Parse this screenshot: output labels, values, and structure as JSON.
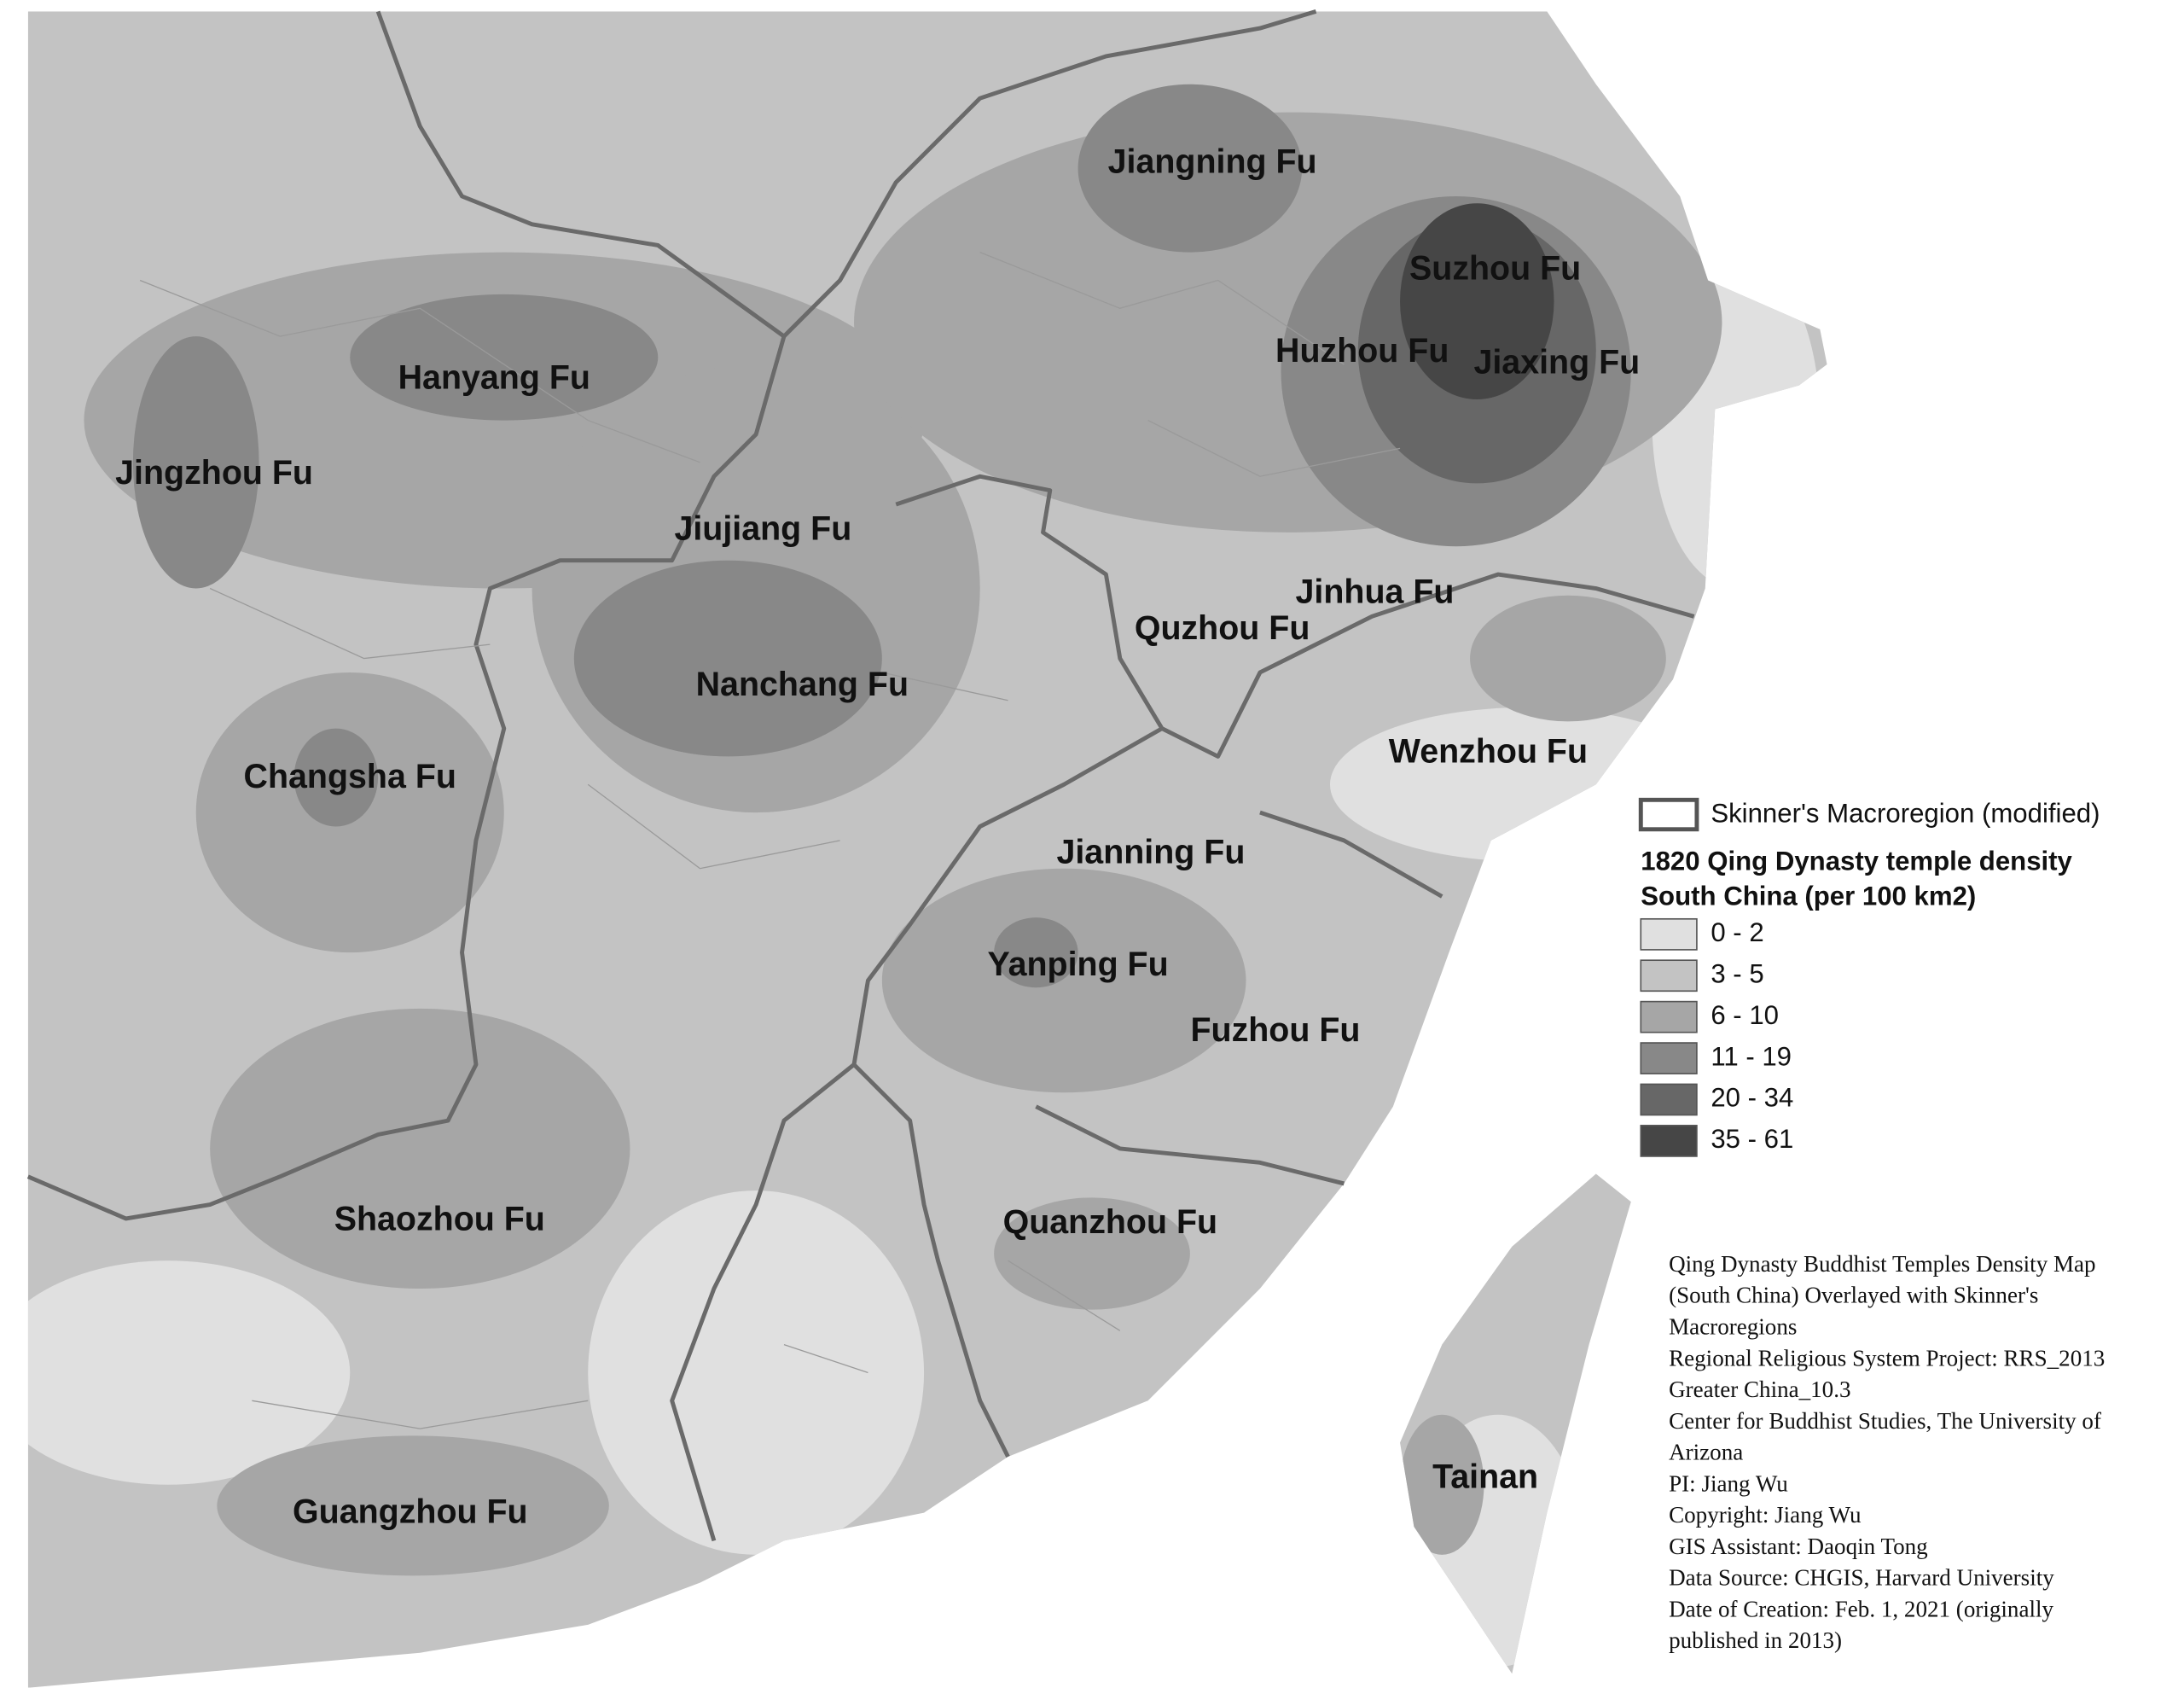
{
  "labels": [
    "Jiangning Fu",
    "Suzhou Fu",
    "Huzhou Fu",
    "Jiaxing Fu",
    "Hanyang Fu",
    "Jingzhou Fu",
    "Jiujiang Fu",
    "Jinhua Fu",
    "Quzhou Fu",
    "Nanchang Fu",
    "Changsha Fu",
    "Wenzhou Fu",
    "Jianning Fu",
    "Yanping Fu",
    "Fuzhou Fu",
    "Shaozhou Fu",
    "Quanzhou Fu",
    "Guangzhou Fu",
    "Tainan"
  ],
  "legend": {
    "boundary": "Skinner's Macroregion (modified)",
    "title": [
      "1820 Qing Dynasty temple density",
      "South China (per 100 km2)"
    ],
    "items": [
      {
        "label": "0 - 2",
        "color": "#e0e0e0"
      },
      {
        "label": "3 - 5",
        "color": "#c3c3c3"
      },
      {
        "label": "6 - 10",
        "color": "#a6a6a6"
      },
      {
        "label": "11 - 19",
        "color": "#888888"
      },
      {
        "label": "20 - 34",
        "color": "#676767"
      },
      {
        "label": "35 - 61",
        "color": "#464646"
      }
    ]
  },
  "credits": [
    "Qing Dynasty Buddhist Temples Density Map",
    "(South China) Overlayed with Skinner's",
    "Macroregions",
    "Regional Religious System Project: RRS_2013",
    "Greater China_10.3",
    "Center for Buddhist Studies, The University of",
    "Arizona",
    "PI: Jiang Wu",
    "Copyright: Jiang Wu",
    "GIS Assistant: Daoqin Tong",
    "Data Source: CHGIS, Harvard University",
    "Date of Creation: Feb. 1, 2021 (originally",
    "published in 2013)"
  ]
}
